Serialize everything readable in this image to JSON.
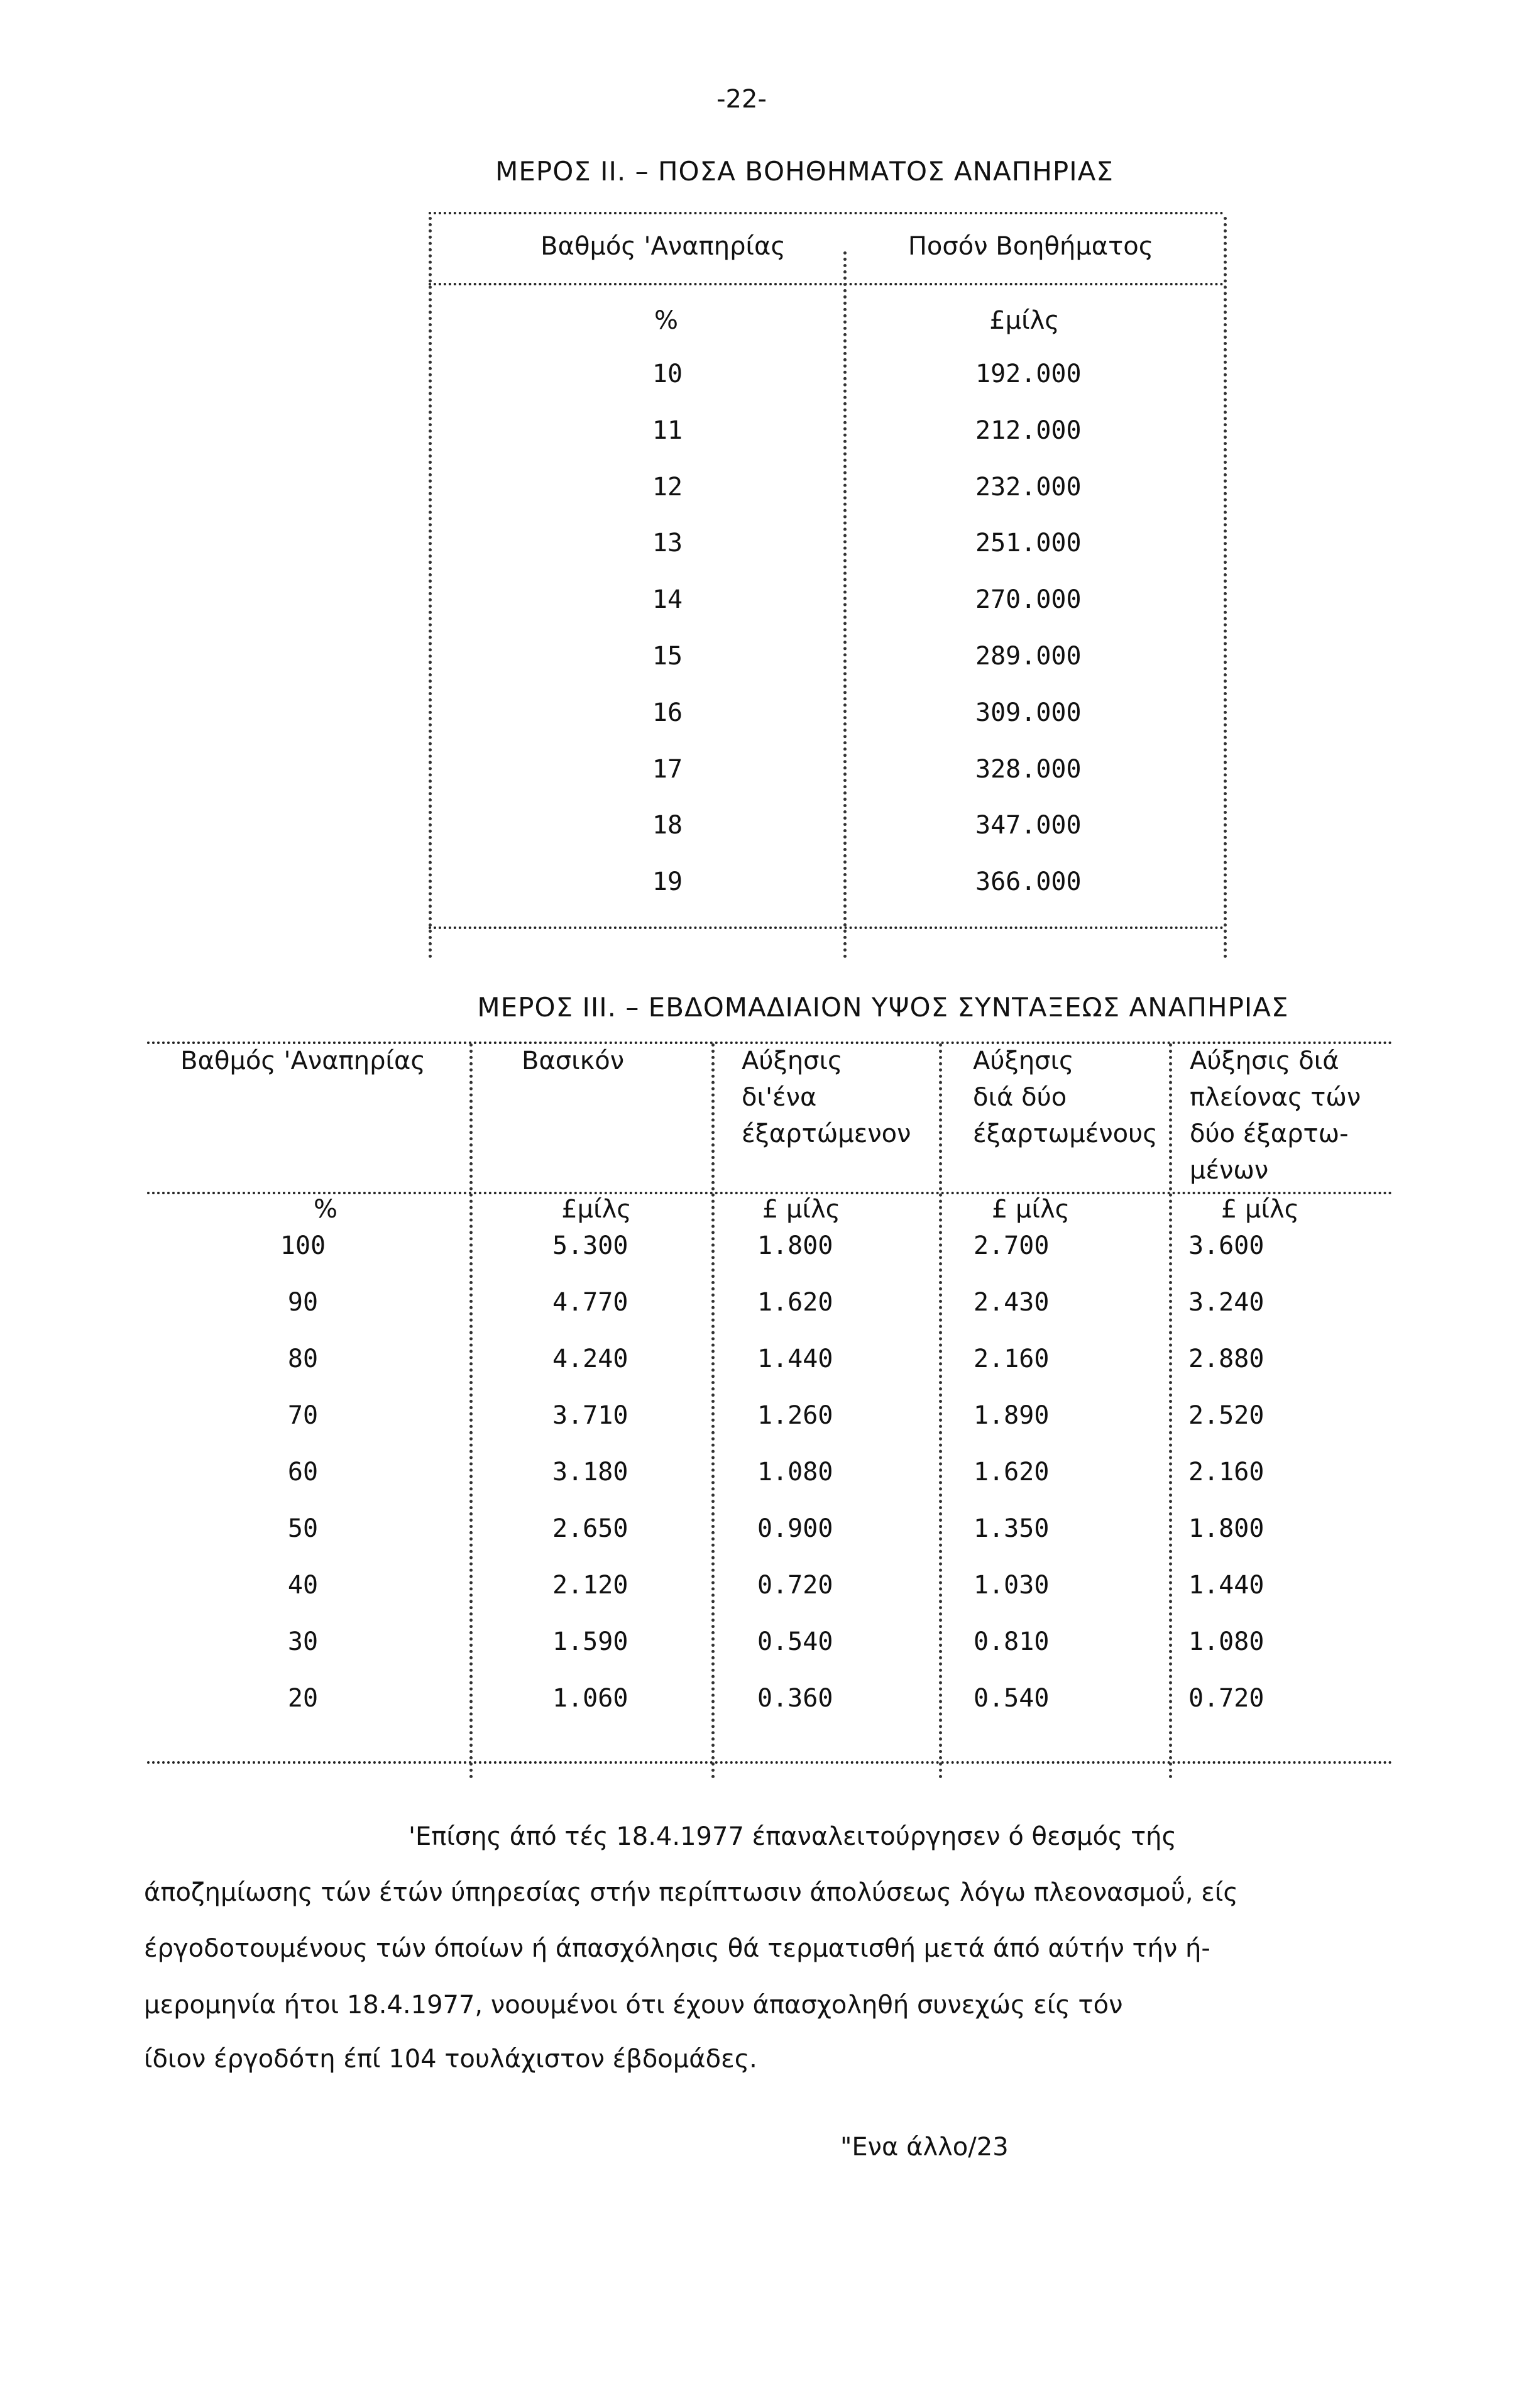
{
  "page_number": "-22-",
  "part2": {
    "title": "ΜΕΡΟΣ ΙΙ. – ΠΟΣΑ ΒΟΗΘΗΜΑΤΟΣ ΑΝΑΠΗΡΙΑΣ",
    "headers": [
      "Βαθμός 'Αναπηρίας",
      "Ποσόν Βοηθήματος"
    ],
    "units": [
      "%",
      "£μίλς"
    ],
    "rows": [
      [
        "10",
        "192.000"
      ],
      [
        "11",
        "212.000"
      ],
      [
        "12",
        "232.000"
      ],
      [
        "13",
        "251.000"
      ],
      [
        "14",
        "270.000"
      ],
      [
        "15",
        "289.000"
      ],
      [
        "16",
        "309.000"
      ],
      [
        "17",
        "328.000"
      ],
      [
        "18",
        "347.000"
      ],
      [
        "19",
        "366.000"
      ]
    ]
  },
  "part3": {
    "title": "ΜΕΡΟΣ ΙΙΙ. – ΕΒΔΟΜΑΔΙΑΙΟΝ ΥΨΟΣ ΣΥΝΤΑΞΕΩΣ ΑΝΑΠΗΡΙΑΣ",
    "headers": [
      [
        "Βαθμός 'Αναπηρίας"
      ],
      [
        "Βασικόν"
      ],
      [
        "Αύξησις",
        "δι'ένα",
        "έξαρτώμενον"
      ],
      [
        "Αύξησις",
        "διά δύο",
        "έξαρτωμένους"
      ],
      [
        "Αύξησις διά",
        "πλείονας τών",
        "δύο έξαρτω-",
        "μένων"
      ]
    ],
    "units": [
      "%",
      "£μίλς",
      "£ μίλς",
      "£ μίλς",
      "£ μίλς"
    ],
    "rows": [
      [
        "100",
        "5.300",
        "1.800",
        "2.700",
        "3.600"
      ],
      [
        "90",
        "4.770",
        "1.620",
        "2.430",
        "3.240"
      ],
      [
        "80",
        "4.240",
        "1.440",
        "2.160",
        "2.880"
      ],
      [
        "70",
        "3.710",
        "1.260",
        "1.890",
        "2.520"
      ],
      [
        "60",
        "3.180",
        "1.080",
        "1.620",
        "2.160"
      ],
      [
        "50",
        "2.650",
        "0.900",
        "1.350",
        "1.800"
      ],
      [
        "40",
        "2.120",
        "0.720",
        "1.030",
        "1.440"
      ],
      [
        "30",
        "1.590",
        "0.540",
        "0.810",
        "1.080"
      ],
      [
        "20",
        "1.060",
        "0.360",
        "0.540",
        "0.720"
      ]
    ]
  },
  "paragraph": [
    "'Επίσης άπό τές 18.4.1977 έπαναλειτούργησεν ό θεσμός τής",
    "άποζημίωσης τών έτών ύπηρεσίας στήν περίπτωσιν άπολύσεως λόγω πλεονασμοΰ, είς",
    "έργοδοτουμένους τών όποίων ή άπασχόλησις θά τερματισθή μετά άπό αύτήν τήν ή-",
    "μερομηνία ήτοι 18.4.1977, νοουμένοι ότι έχουν άπασχοληθή συνεχώς είς τόν",
    "ίδιον έργοδότη έπί 104 τουλάχιστον έβδομάδες."
  ],
  "continuation": "\"Ενα άλλο/23"
}
